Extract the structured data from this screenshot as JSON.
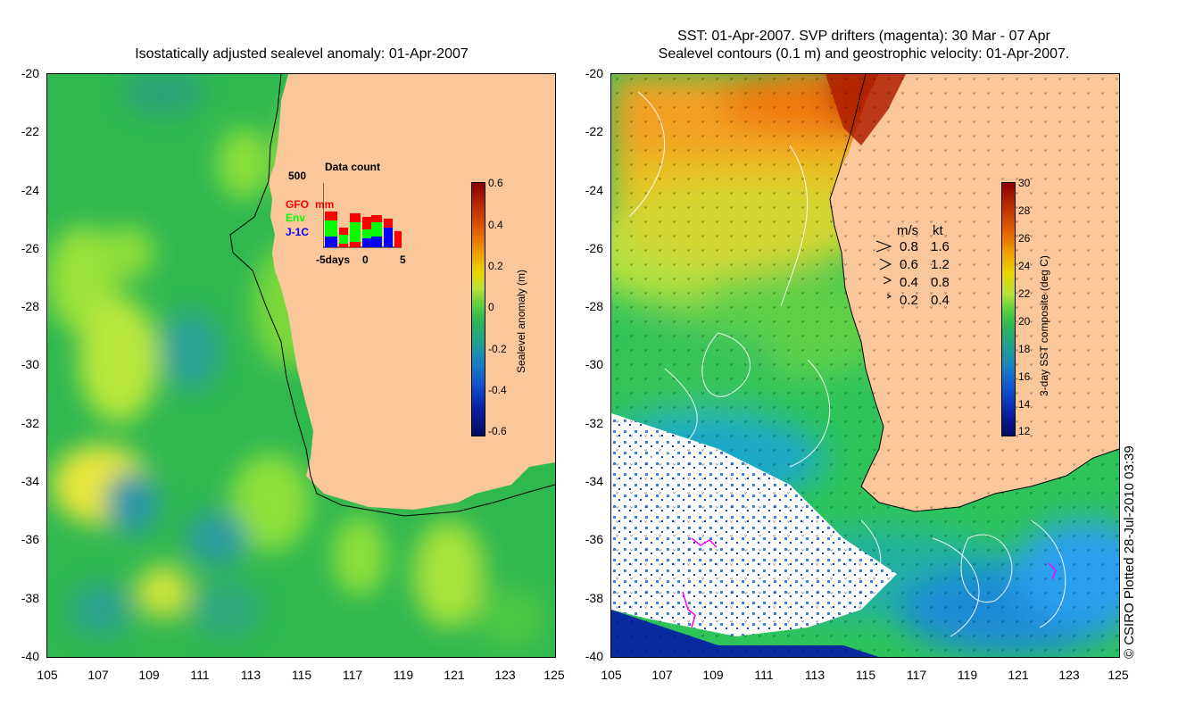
{
  "left_map": {
    "title": "Isostatically adjusted sealevel anomaly: 01-Apr-2007",
    "y_ticks": [
      "-20",
      "-22",
      "-24",
      "-26",
      "-28",
      "-30",
      "-32",
      "-34",
      "-36",
      "-38",
      "-40"
    ],
    "x_ticks": [
      "105",
      "107",
      "109",
      "111",
      "113",
      "115",
      "117",
      "119",
      "121",
      "123",
      "125"
    ],
    "colorbar": {
      "ticks": [
        "0.6",
        "0.4",
        "0.2",
        "0",
        "-0.2",
        "-0.4",
        "-0.6"
      ],
      "title": "Sealevel anomaly (m)"
    },
    "inset": {
      "title": "Data count",
      "max_label": "500",
      "series": [
        {
          "name": "GFO",
          "color": "#ff0000"
        },
        {
          "name": "Env",
          "color": "#00ff00"
        },
        {
          "name": "J-1C",
          "color": "#0000ff"
        }
      ],
      "extra_label": "mm",
      "x_labels": [
        "-5days",
        "0",
        "5"
      ]
    }
  },
  "right_map": {
    "title_line1": "SST: 01-Apr-2007. SVP drifters (magenta): 30 Mar - 07 Apr",
    "title_line2": "Sealevel contours (0.1 m) and geostrophic velocity: 01-Apr-2007.",
    "y_ticks": [
      "-20",
      "-22",
      "-24",
      "-26",
      "-28",
      "-30",
      "-32",
      "-34",
      "-36",
      "-38",
      "-40"
    ],
    "x_ticks": [
      "105",
      "107",
      "109",
      "111",
      "113",
      "115",
      "117",
      "119",
      "121",
      "123",
      "125"
    ],
    "colorbar": {
      "ticks": [
        "30",
        "28",
        "26",
        "24",
        "22",
        "20",
        "18",
        "16",
        "14",
        "12"
      ],
      "title": "3-day SST composite (deg C)"
    },
    "velocity_legend": {
      "header_ms": "m/s",
      "header_kt": "kt",
      "rows": [
        {
          "ms": "0.8",
          "kt": "1.6"
        },
        {
          "ms": "0.6",
          "kt": "1.2"
        },
        {
          "ms": "0.4",
          "kt": "0.8"
        },
        {
          "ms": "0.2",
          "kt": "0.4"
        }
      ]
    }
  },
  "copyright": "© CSIRO Plotted 28-Jul-2010 03:39",
  "colors": {
    "land": "#fac79b",
    "sea_base": "#33c24a",
    "drifter": "#ff00ff"
  }
}
